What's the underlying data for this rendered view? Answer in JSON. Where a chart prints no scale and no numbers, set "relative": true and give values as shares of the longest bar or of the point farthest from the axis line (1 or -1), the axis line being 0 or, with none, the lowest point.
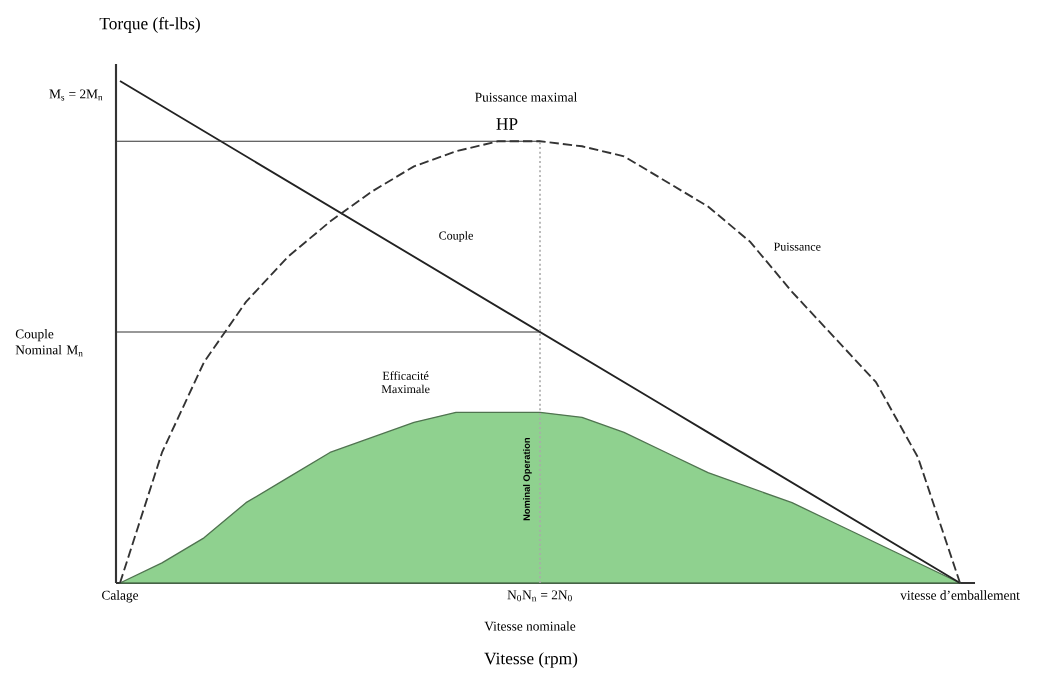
{
  "chart_data": {
    "type": "line",
    "relative": true,
    "ylabel": "Torque (ft-lbs)",
    "xlabel": "Vitesse (rpm)",
    "categories": [
      "Calage",
      null,
      null,
      null,
      null,
      null,
      null,
      null,
      null,
      null,
      "N$_{0}$N$_{n}$ = 2N$_{0}$",
      null,
      null,
      null,
      null,
      null,
      null,
      null,
      null,
      null,
      "vitesse d’emballement"
    ],
    "series": [
      {
        "name": "Efficacité Maximale",
        "type": "area",
        "color": "#8fd18f",
        "values": [
          0,
          0.04,
          0.09,
          0.16,
          0.21,
          0.26,
          0.29,
          0.32,
          0.34,
          0.34,
          0.34,
          0.33,
          0.3,
          0.26,
          0.22,
          0.19,
          0.16,
          0.12,
          0.08,
          0.04,
          0
        ]
      },
      {
        "name": "Couple",
        "color": "#222222",
        "line_style": "solid",
        "values": [
          1,
          0.95,
          0.9,
          0.85,
          0.8,
          0.75,
          0.7,
          0.65,
          0.6,
          0.55,
          0.5,
          0.45,
          0.4,
          0.35,
          0.3,
          0.25,
          0.2,
          0.15,
          0.1,
          0.05,
          0
        ]
      },
      {
        "name": "Puissance",
        "color": "#333333",
        "line_style": "dashed",
        "values": [
          0,
          0.26,
          0.44,
          0.56,
          0.65,
          0.72,
          0.78,
          0.83,
          0.86,
          0.88,
          0.88,
          0.87,
          0.85,
          0.8,
          0.75,
          0.68,
          0.58,
          0.49,
          0.4,
          0.25,
          0
        ]
      }
    ],
    "ref_lines": [
      {
        "axis": "y",
        "value": 0.88,
        "label": null,
        "color": "#333333",
        "line_style": "solid"
      },
      {
        "axis": "y",
        "value": 0.5,
        "label": "Couple Nominal M$_{n}$",
        "color": "#333333",
        "line_style": "solid"
      },
      {
        "axis": "x",
        "value": "N$_{0}$N$_{n}$ = 2N$_{0}$",
        "label": "Nominal Operation",
        "color": "#aaaaaa",
        "line_style": "dotted"
      }
    ],
    "annotations": [
      "M$_{s}$ = 2M$_{n}$",
      "Puissance maximal",
      "HP",
      "Vitesse nominale"
    ]
  }
}
